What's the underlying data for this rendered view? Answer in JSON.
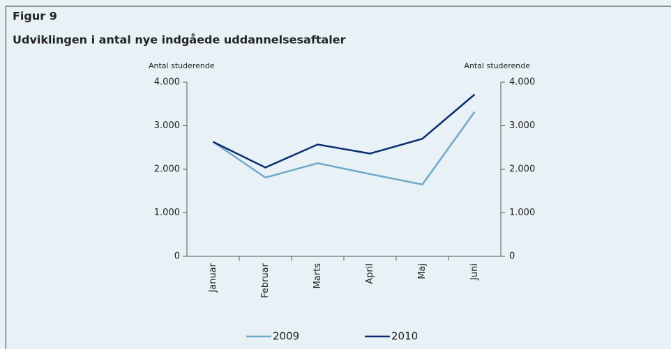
{
  "figure_label": "Figur 9",
  "chart_data": {
    "type": "line",
    "title": "Udviklingen i antal nye indgåede uddannelsesaftaler",
    "ylabel": "Antal studerende",
    "y2label": "Antal studerende",
    "categories": [
      "Januar",
      "Februar",
      "Marts",
      "April",
      "Maj",
      "Juni"
    ],
    "series": [
      {
        "name": "2009",
        "color": "#6fa8c8",
        "values": [
          2630,
          1810,
          2140,
          1890,
          1650,
          3320
        ]
      },
      {
        "name": "2010",
        "color": "#0b2d6e",
        "values": [
          2630,
          2040,
          2570,
          2360,
          2700,
          3720
        ]
      }
    ],
    "ylim": [
      0,
      4000
    ],
    "yticks": [
      0,
      {
        "value": 1000,
        "label": "1.000"
      },
      {
        "value": 2000,
        "label": "2.000"
      },
      {
        "value": 3000,
        "label": "3.000"
      },
      {
        "value": 4000,
        "label": "4.000"
      }
    ],
    "y2lim": [
      0,
      4000
    ],
    "y2ticks": [
      0,
      {
        "value": 1000,
        "label": "1.000"
      },
      {
        "value": 2000,
        "label": "2.000"
      },
      {
        "value": 3000,
        "label": "3.000"
      },
      {
        "value": 4000,
        "label": "4.000"
      }
    ],
    "legend": "bottom"
  }
}
